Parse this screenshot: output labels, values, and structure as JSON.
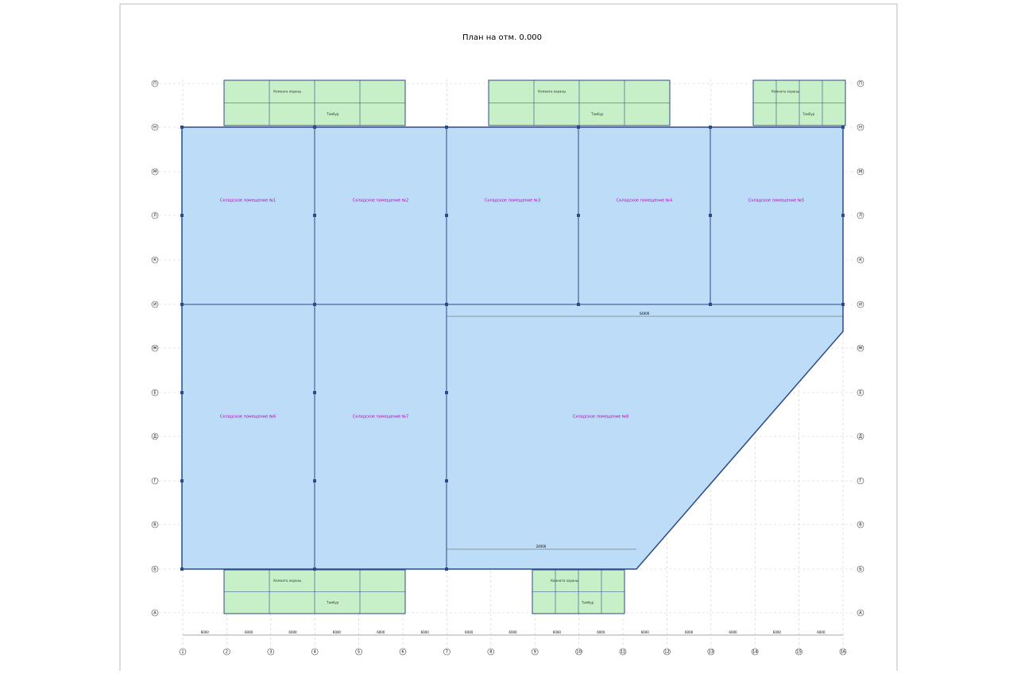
{
  "title": "План на отм. 0.000",
  "rooms": [
    "Складское помещение №1",
    "Складское помещение №2",
    "Складское помещение №3",
    "Складское помещение №4",
    "Складское помещение №5",
    "Складское помещение №6",
    "Складское помещение №7",
    "Складское помещение №8"
  ],
  "axes": {
    "columns": [
      "1",
      "2",
      "3",
      "4",
      "5",
      "6",
      "7",
      "8",
      "9",
      "10",
      "11",
      "12",
      "13",
      "14",
      "15",
      "16"
    ],
    "rows": [
      "П",
      "Н",
      "М",
      "Л",
      "К",
      "И",
      "Ж",
      "Е",
      "Д",
      "Г",
      "В",
      "Б",
      "А"
    ]
  },
  "dimensions": {
    "spans": [
      "6000",
      "6000",
      "6000",
      "6000",
      "6000",
      "6000",
      "6000",
      "6000",
      "6000",
      "6000",
      "6000",
      "6000",
      "6000",
      "6000",
      "6000"
    ],
    "inner": [
      "54000",
      "24000"
    ]
  },
  "annex_labels": [
    "Комната охраны",
    "Тамбур"
  ]
}
